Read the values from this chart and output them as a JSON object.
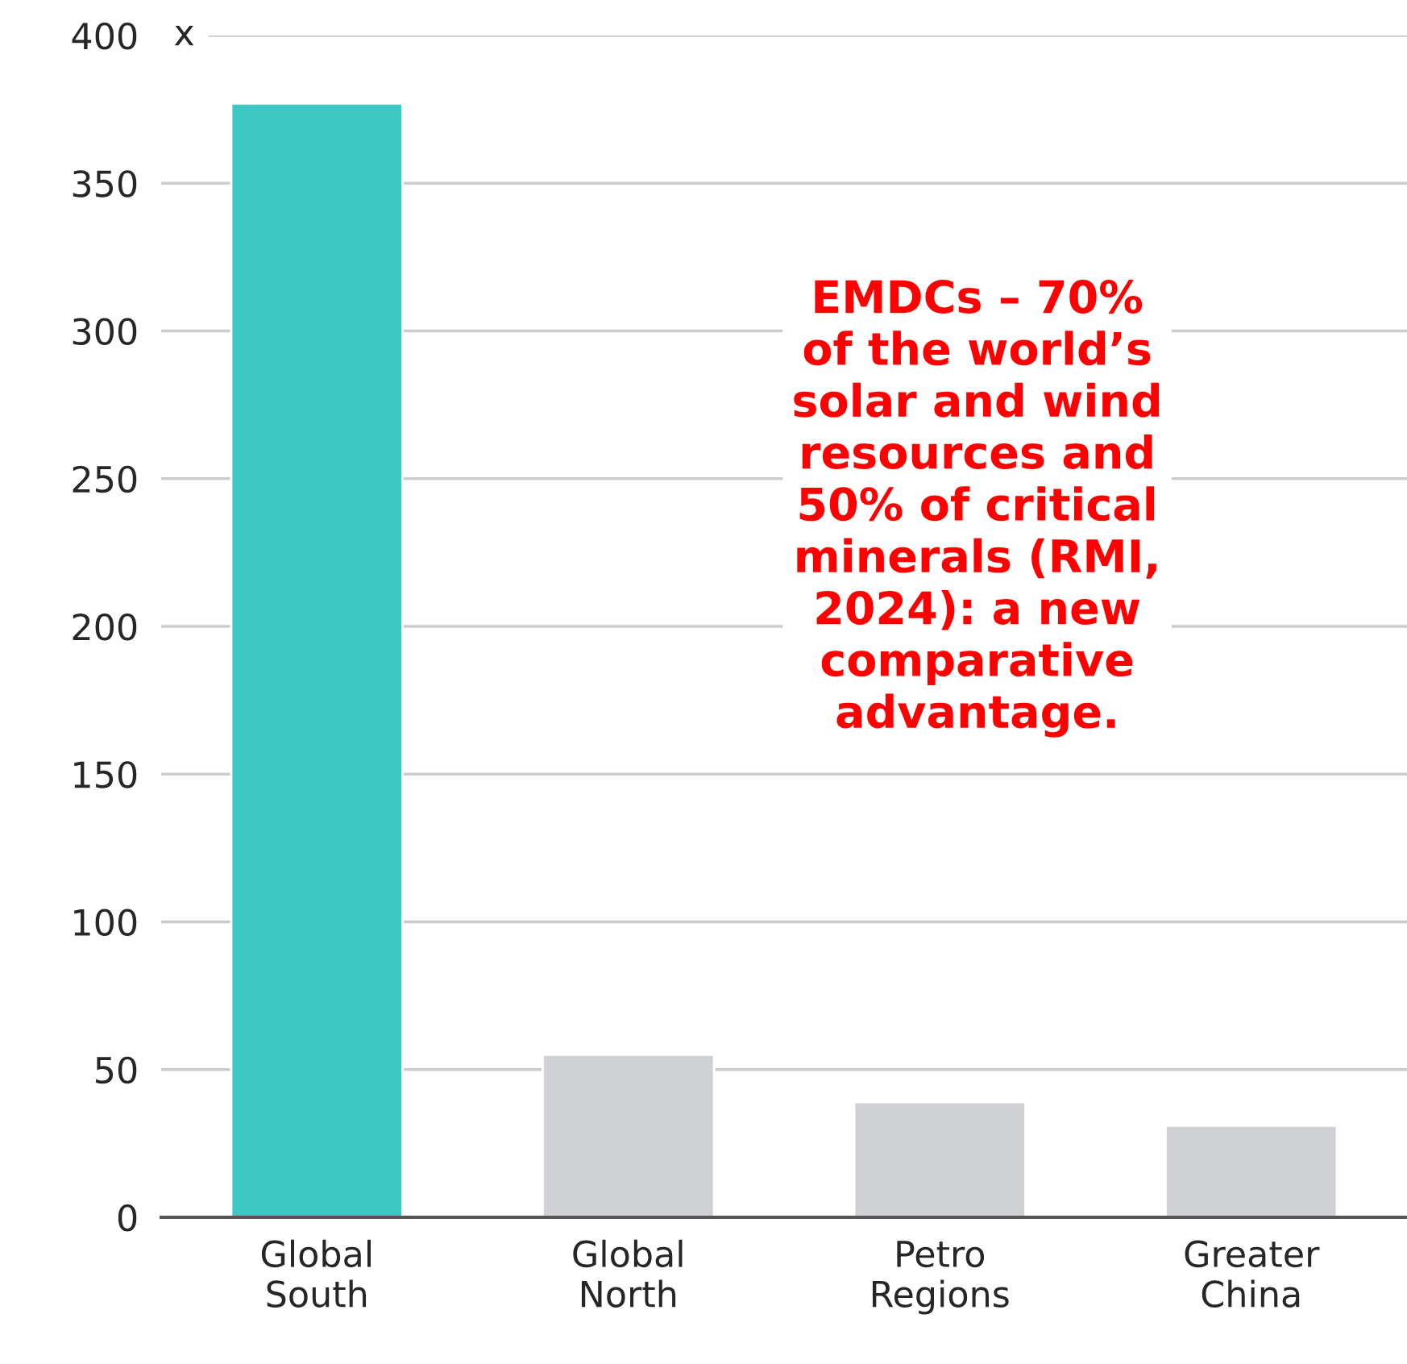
{
  "chart_data": {
    "type": "bar",
    "ylabel": "x",
    "categories": [
      "Global\nSouth",
      "Global\nNorth",
      "Petro\nRegions",
      "Greater\nChina"
    ],
    "values": [
      377,
      55,
      39,
      31
    ],
    "colors": [
      "#3ec8c4",
      "#d0d1d4",
      "#d0d1d4",
      "#d0d1d4"
    ],
    "ylim": [
      0,
      400
    ],
    "yticks": [
      0,
      50,
      100,
      150,
      200,
      250,
      300,
      350,
      400
    ],
    "grid": "y",
    "annotations": [
      "EMDCs – 70%\nof the world’s\nsolar and wind\nresources and\n50% of critical\nminerals (RMI,\n2024): a new\ncomparative\nadvantage."
    ]
  }
}
